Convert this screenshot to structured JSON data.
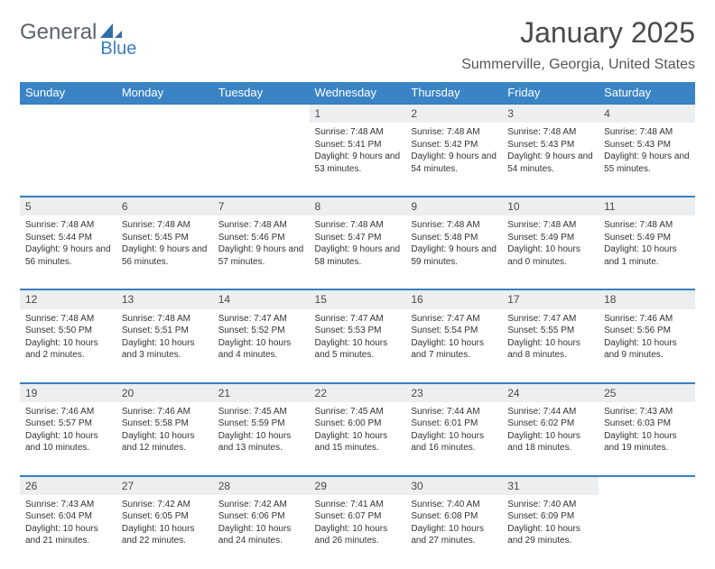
{
  "logo": {
    "word1": "General",
    "word2": "Blue"
  },
  "title": "January 2025",
  "location": "Summerville, Georgia, United States",
  "colors": {
    "header_bg": "#3a84c5",
    "accent": "#3a7fbf",
    "text": "#333333",
    "daynum_bg": "#eceef0"
  },
  "font": {
    "family": "Arial",
    "title_size": 32,
    "location_size": 16,
    "header_cell_size": 13,
    "daynum_size": 12,
    "body_size": 10
  },
  "weekdays": [
    "Sunday",
    "Monday",
    "Tuesday",
    "Wednesday",
    "Thursday",
    "Friday",
    "Saturday"
  ],
  "weeks": [
    {
      "days": [
        null,
        null,
        null,
        {
          "n": 1,
          "sunrise": "7:48 AM",
          "sunset": "5:41 PM",
          "daylight": "9 hours and 53 minutes."
        },
        {
          "n": 2,
          "sunrise": "7:48 AM",
          "sunset": "5:42 PM",
          "daylight": "9 hours and 54 minutes."
        },
        {
          "n": 3,
          "sunrise": "7:48 AM",
          "sunset": "5:43 PM",
          "daylight": "9 hours and 54 minutes."
        },
        {
          "n": 4,
          "sunrise": "7:48 AM",
          "sunset": "5:43 PM",
          "daylight": "9 hours and 55 minutes."
        }
      ]
    },
    {
      "days": [
        {
          "n": 5,
          "sunrise": "7:48 AM",
          "sunset": "5:44 PM",
          "daylight": "9 hours and 56 minutes."
        },
        {
          "n": 6,
          "sunrise": "7:48 AM",
          "sunset": "5:45 PM",
          "daylight": "9 hours and 56 minutes."
        },
        {
          "n": 7,
          "sunrise": "7:48 AM",
          "sunset": "5:46 PM",
          "daylight": "9 hours and 57 minutes."
        },
        {
          "n": 8,
          "sunrise": "7:48 AM",
          "sunset": "5:47 PM",
          "daylight": "9 hours and 58 minutes."
        },
        {
          "n": 9,
          "sunrise": "7:48 AM",
          "sunset": "5:48 PM",
          "daylight": "9 hours and 59 minutes."
        },
        {
          "n": 10,
          "sunrise": "7:48 AM",
          "sunset": "5:49 PM",
          "daylight": "10 hours and 0 minutes."
        },
        {
          "n": 11,
          "sunrise": "7:48 AM",
          "sunset": "5:49 PM",
          "daylight": "10 hours and 1 minute."
        }
      ]
    },
    {
      "days": [
        {
          "n": 12,
          "sunrise": "7:48 AM",
          "sunset": "5:50 PM",
          "daylight": "10 hours and 2 minutes."
        },
        {
          "n": 13,
          "sunrise": "7:48 AM",
          "sunset": "5:51 PM",
          "daylight": "10 hours and 3 minutes."
        },
        {
          "n": 14,
          "sunrise": "7:47 AM",
          "sunset": "5:52 PM",
          "daylight": "10 hours and 4 minutes."
        },
        {
          "n": 15,
          "sunrise": "7:47 AM",
          "sunset": "5:53 PM",
          "daylight": "10 hours and 5 minutes."
        },
        {
          "n": 16,
          "sunrise": "7:47 AM",
          "sunset": "5:54 PM",
          "daylight": "10 hours and 7 minutes."
        },
        {
          "n": 17,
          "sunrise": "7:47 AM",
          "sunset": "5:55 PM",
          "daylight": "10 hours and 8 minutes."
        },
        {
          "n": 18,
          "sunrise": "7:46 AM",
          "sunset": "5:56 PM",
          "daylight": "10 hours and 9 minutes."
        }
      ]
    },
    {
      "days": [
        {
          "n": 19,
          "sunrise": "7:46 AM",
          "sunset": "5:57 PM",
          "daylight": "10 hours and 10 minutes."
        },
        {
          "n": 20,
          "sunrise": "7:46 AM",
          "sunset": "5:58 PM",
          "daylight": "10 hours and 12 minutes."
        },
        {
          "n": 21,
          "sunrise": "7:45 AM",
          "sunset": "5:59 PM",
          "daylight": "10 hours and 13 minutes."
        },
        {
          "n": 22,
          "sunrise": "7:45 AM",
          "sunset": "6:00 PM",
          "daylight": "10 hours and 15 minutes."
        },
        {
          "n": 23,
          "sunrise": "7:44 AM",
          "sunset": "6:01 PM",
          "daylight": "10 hours and 16 minutes."
        },
        {
          "n": 24,
          "sunrise": "7:44 AM",
          "sunset": "6:02 PM",
          "daylight": "10 hours and 18 minutes."
        },
        {
          "n": 25,
          "sunrise": "7:43 AM",
          "sunset": "6:03 PM",
          "daylight": "10 hours and 19 minutes."
        }
      ]
    },
    {
      "days": [
        {
          "n": 26,
          "sunrise": "7:43 AM",
          "sunset": "6:04 PM",
          "daylight": "10 hours and 21 minutes."
        },
        {
          "n": 27,
          "sunrise": "7:42 AM",
          "sunset": "6:05 PM",
          "daylight": "10 hours and 22 minutes."
        },
        {
          "n": 28,
          "sunrise": "7:42 AM",
          "sunset": "6:06 PM",
          "daylight": "10 hours and 24 minutes."
        },
        {
          "n": 29,
          "sunrise": "7:41 AM",
          "sunset": "6:07 PM",
          "daylight": "10 hours and 26 minutes."
        },
        {
          "n": 30,
          "sunrise": "7:40 AM",
          "sunset": "6:08 PM",
          "daylight": "10 hours and 27 minutes."
        },
        {
          "n": 31,
          "sunrise": "7:40 AM",
          "sunset": "6:09 PM",
          "daylight": "10 hours and 29 minutes."
        },
        null
      ]
    }
  ],
  "labels": {
    "sunrise": "Sunrise:",
    "sunset": "Sunset:",
    "daylight": "Daylight:"
  }
}
